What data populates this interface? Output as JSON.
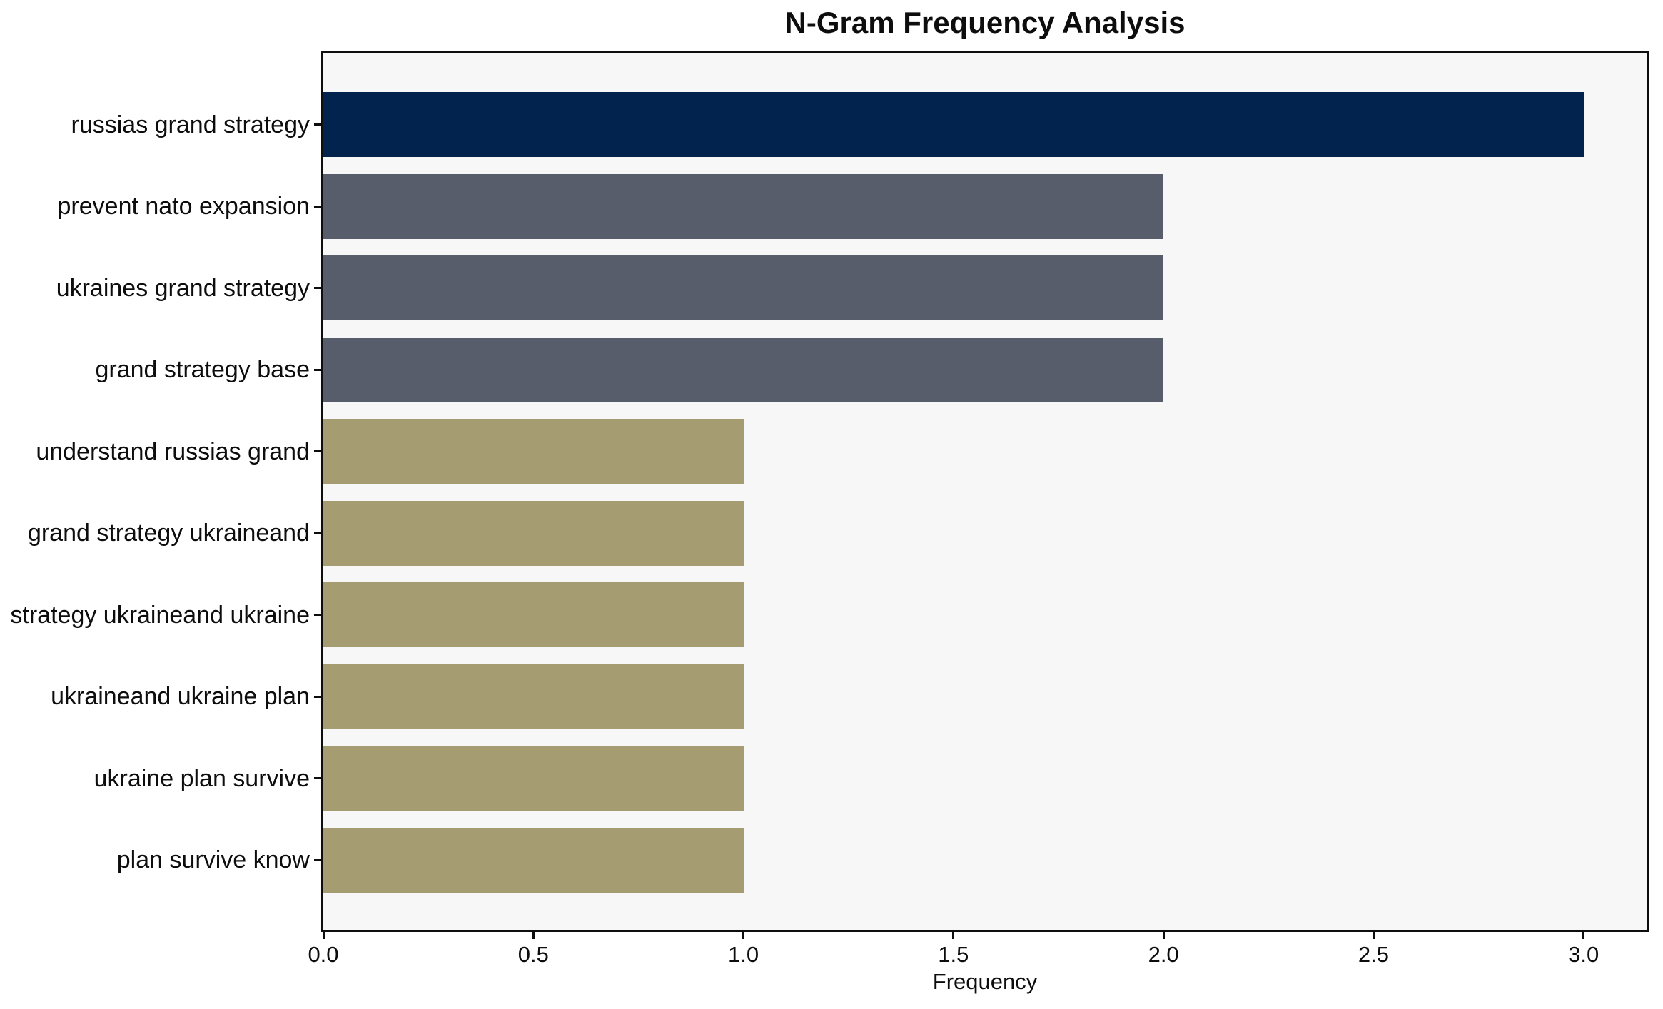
{
  "chart_data": {
    "type": "bar",
    "orientation": "horizontal",
    "title": "N-Gram Frequency Analysis",
    "xlabel": "Frequency",
    "ylabel": "",
    "categories": [
      "russias grand strategy",
      "prevent nato expansion",
      "ukraines grand strategy",
      "grand strategy base",
      "understand russias grand",
      "grand strategy ukraineand",
      "strategy ukraineand ukraine",
      "ukraineand ukraine plan",
      "ukraine plan survive",
      "plan survive know"
    ],
    "values": [
      3,
      2,
      2,
      2,
      1,
      1,
      1,
      1,
      1,
      1
    ],
    "bar_colors": [
      "#01234e",
      "#575d6b",
      "#575d6b",
      "#575d6b",
      "#a69c72",
      "#a69c72",
      "#a69c72",
      "#a69c72",
      "#a69c72",
      "#a69c72"
    ],
    "xlim": [
      0,
      3.15
    ],
    "xticks": [
      "0.0",
      "0.5",
      "1.0",
      "1.5",
      "2.0",
      "2.5",
      "3.0"
    ],
    "xtick_values": [
      0,
      0.5,
      1.0,
      1.5,
      2.0,
      2.5,
      3.0
    ],
    "grid": false,
    "legend": false,
    "plot_bg": "#f7f7f7",
    "figure_bg": "#ffffff",
    "spine_color": "#0e0e0e",
    "text_color": "#0d0d0d"
  }
}
